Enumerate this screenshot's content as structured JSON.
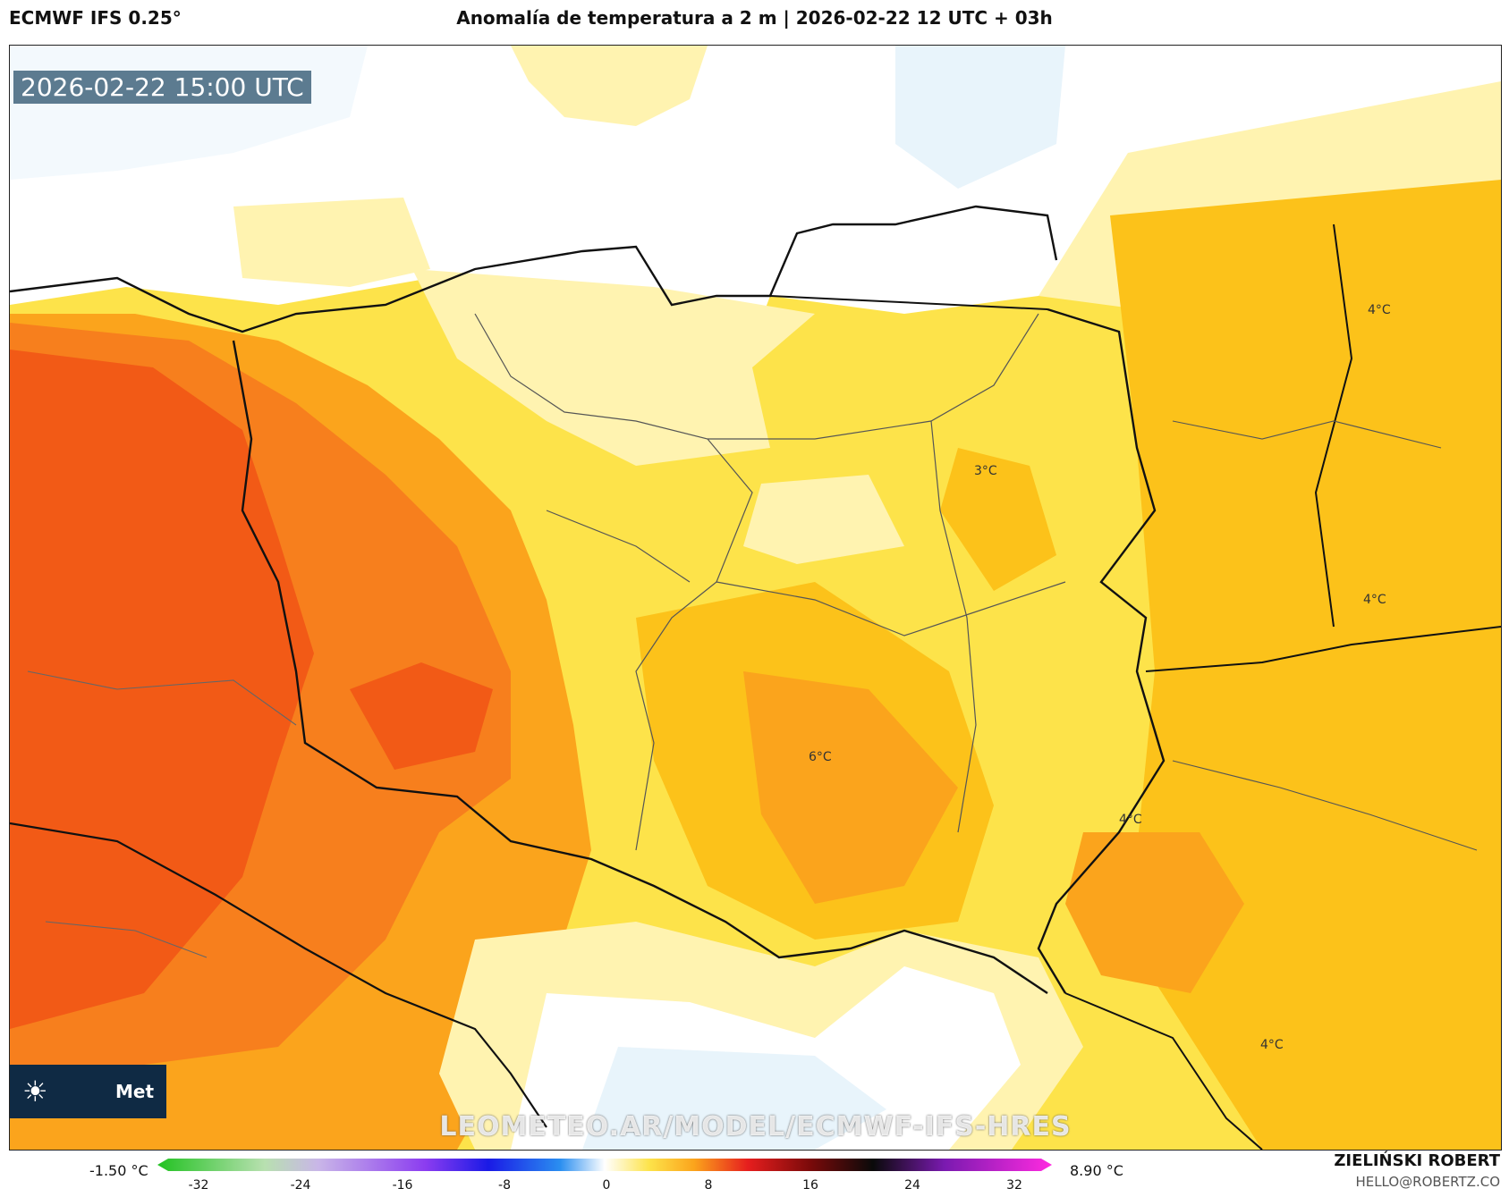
{
  "header": {
    "model": "ECMWF IFS 0.25°",
    "title": "Anomalía de temperatura a 2 m | 2026-02-22 12 UTC + 03h"
  },
  "map": {
    "valid_time": "2026-02-22 15:00 UTC",
    "watermark": "LEOMETEO.AR/MODEL/ECMWF-IFS-HRES",
    "logo_text": "Met",
    "logo_icon": "sun-icon",
    "contour_labels": [
      {
        "text": "4°C",
        "name": "label-4c-northeast"
      },
      {
        "text": "3°C",
        "name": "label-3c-center"
      },
      {
        "text": "4°C",
        "name": "label-4c-east"
      },
      {
        "text": "6°C",
        "name": "label-6c-south"
      },
      {
        "text": "4°C",
        "name": "label-4c-southeast"
      },
      {
        "text": "4°C",
        "name": "label-4c-bottom-right"
      }
    ],
    "colors": {
      "near_zero": "#ffffff",
      "cold_light": "#e8f4fb",
      "pale_yellow": "#fff3b0",
      "yellow": "#fde34a",
      "gold": "#fcc21a",
      "orange": "#fba41c",
      "dark_orange": "#f77f1d",
      "red_orange": "#f25a16"
    }
  },
  "legend": {
    "min_label": "-1.50 °C",
    "max_label": "8.90 °C",
    "ticks": [
      "-32",
      "-24",
      "-16",
      "-8",
      "0",
      "8",
      "16",
      "24",
      "32"
    ]
  },
  "credit": {
    "author": "ZIELIŃSKI ROBERT",
    "email": "HELLO@ROBERTZ.CO"
  }
}
